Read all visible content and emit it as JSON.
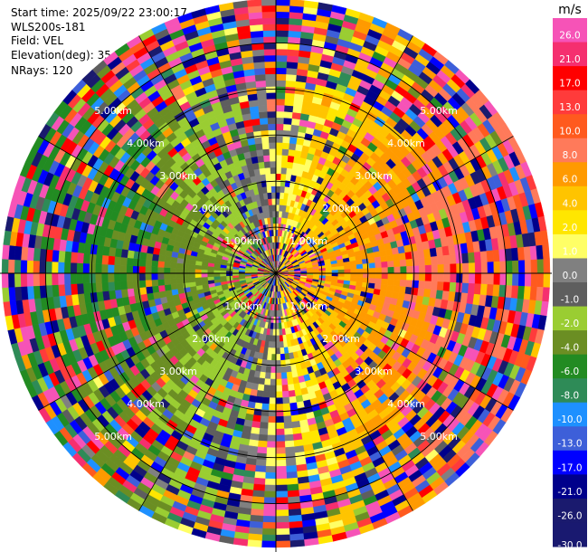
{
  "header": {
    "start_time": "Start time: 2025/09/22 23:00:17",
    "instrument": "WLS200s-181",
    "field": "Field: VEL",
    "elevation": "Elevation(deg): 35.00",
    "nrays": "NRays: 120"
  },
  "chart_data": {
    "type": "heatmap",
    "projection": "polar (PPI)",
    "grid": true,
    "range_rings": [
      "1.00km",
      "2.00km",
      "3.00km",
      "4.00km",
      "5.00km"
    ],
    "colorbar": {
      "unit": "m/s",
      "ticks": [
        "26.0",
        "21.0",
        "17.0",
        "13.0",
        "10.0",
        "8.0",
        "6.0",
        "4.0",
        "2.0",
        "1.0",
        "0.0",
        "-1.0",
        "-2.0",
        "-4.0",
        "-6.0",
        "-8.0",
        "-10.0",
        "-13.0",
        "-17.0",
        "-21.0",
        "-26.0",
        "-30.0"
      ],
      "bin_colors": [
        "#f653b7",
        "#f52f6f",
        "#ff0000",
        "#ff3b3b",
        "#ff5a1e",
        "#ff7a5a",
        "#ff9a00",
        "#ffc400",
        "#ffe600",
        "#ffff66",
        "#808080",
        "#5e5e5e",
        "#9acd32",
        "#6b8e23",
        "#228b22",
        "#2e8b57",
        "#1e90ff",
        "#3d5fd9",
        "#0000ff",
        "#00008b",
        "#1a1a6e",
        "#191970"
      ]
    }
  }
}
